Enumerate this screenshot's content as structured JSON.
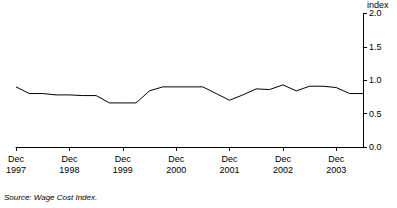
{
  "chart_data": {
    "type": "line",
    "ylabel": "index",
    "source": "Source: Wage Cost Index.",
    "categories": [
      "Dec 1997",
      null,
      null,
      null,
      "Dec 1998",
      null,
      null,
      null,
      "Dec 1999",
      null,
      null,
      null,
      "Dec 2000",
      null,
      null,
      null,
      "Dec 2001",
      null,
      null,
      null,
      "Dec 2002",
      null,
      null,
      null,
      "Dec 2003",
      null,
      null
    ],
    "values": [
      0.9,
      0.8,
      0.8,
      0.78,
      0.78,
      0.77,
      0.77,
      0.66,
      0.66,
      0.66,
      0.84,
      0.9,
      0.9,
      0.9,
      0.9,
      0.8,
      0.7,
      0.78,
      0.87,
      0.86,
      0.93,
      0.84,
      0.91,
      0.91,
      0.89,
      0.8,
      0.8
    ],
    "color": "#000000",
    "ylim": [
      0,
      2
    ],
    "yticks": [
      {
        "value": 0,
        "label": "0.0"
      },
      {
        "value": 0.5,
        "label": "0.5"
      },
      {
        "value": 1,
        "label": "1.0"
      },
      {
        "value": 1.5,
        "label": "1.5"
      },
      {
        "value": 2,
        "label": "2.0"
      }
    ],
    "grid": false
  }
}
